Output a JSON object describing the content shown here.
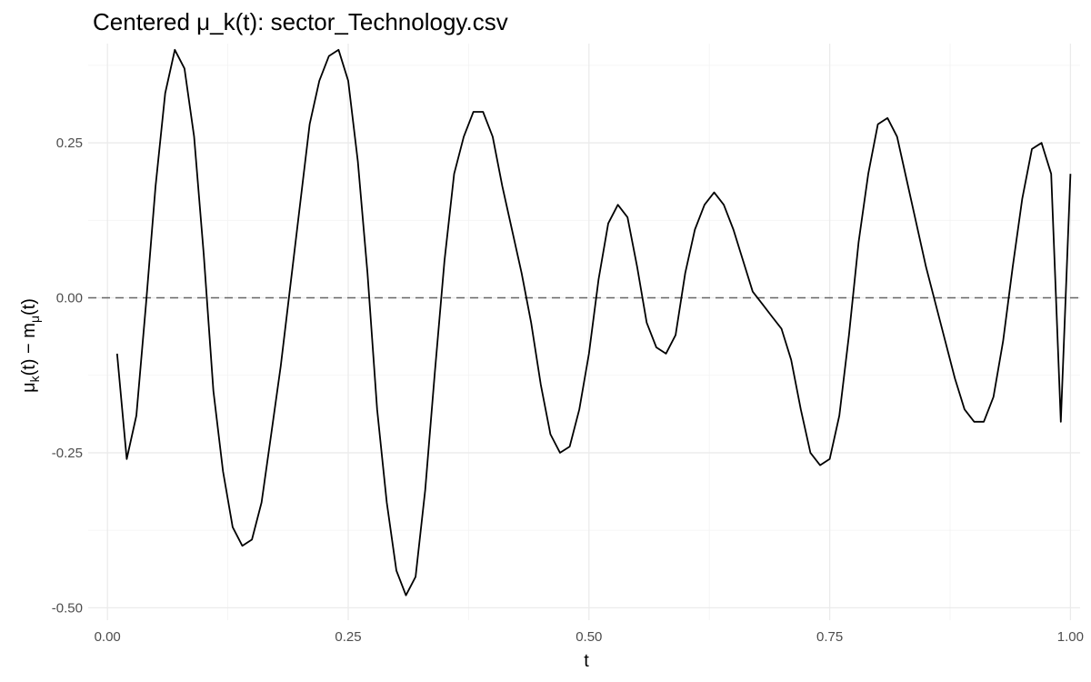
{
  "chart_data": {
    "type": "line",
    "title": "Centered μ_k(t): sector_Technology.csv",
    "xlabel": "t",
    "ylabel": {
      "mu": "μ",
      "k": "k",
      "rest": "(t) − m",
      "mu_sub": "μ",
      "end": "(t)"
    },
    "xlim": [
      -0.02,
      1.01
    ],
    "ylim": [
      -0.52,
      0.41
    ],
    "x_ticks": [
      0.0,
      0.25,
      0.5,
      0.75,
      1.0
    ],
    "x_tick_labels": [
      "0.00",
      "0.25",
      "0.50",
      "0.75",
      "1.00"
    ],
    "y_ticks": [
      -0.5,
      -0.25,
      0.0,
      0.25
    ],
    "y_tick_labels": [
      "-0.50",
      "-0.25",
      "0.00",
      "0.25"
    ],
    "reference_line": {
      "y": 0,
      "style": "dashed",
      "color": "#666666"
    },
    "grid": true,
    "line_color": "#000000",
    "series": [
      {
        "x": [
          0.01,
          0.02,
          0.03,
          0.04,
          0.05,
          0.06,
          0.07,
          0.08,
          0.09,
          0.1,
          0.11,
          0.12,
          0.13,
          0.14,
          0.15,
          0.16,
          0.17,
          0.18,
          0.19,
          0.2,
          0.21,
          0.22,
          0.23,
          0.24,
          0.25,
          0.26,
          0.27,
          0.28,
          0.29,
          0.3,
          0.31,
          0.32,
          0.33,
          0.34,
          0.35,
          0.36,
          0.37,
          0.38,
          0.39,
          0.4,
          0.41,
          0.42,
          0.43,
          0.44,
          0.45,
          0.46,
          0.47,
          0.48,
          0.49,
          0.5,
          0.51,
          0.52,
          0.53,
          0.54,
          0.55,
          0.56,
          0.57,
          0.58,
          0.59,
          0.6,
          0.61,
          0.62,
          0.63,
          0.64,
          0.65,
          0.66,
          0.67,
          0.68,
          0.69,
          0.7,
          0.71,
          0.72,
          0.73,
          0.74,
          0.75,
          0.76,
          0.77,
          0.78,
          0.79,
          0.8,
          0.81,
          0.82,
          0.83,
          0.84,
          0.85,
          0.86,
          0.87,
          0.88,
          0.89,
          0.9,
          0.91,
          0.92,
          0.93,
          0.94,
          0.95,
          0.96,
          0.97,
          0.98,
          0.99,
          1.0
        ],
        "y": [
          -0.09,
          -0.26,
          -0.19,
          -0.01,
          0.18,
          0.33,
          0.4,
          0.37,
          0.26,
          0.07,
          -0.15,
          -0.28,
          -0.37,
          -0.4,
          -0.39,
          -0.33,
          -0.22,
          -0.11,
          0.02,
          0.15,
          0.28,
          0.35,
          0.39,
          0.4,
          0.35,
          0.22,
          0.04,
          -0.18,
          -0.33,
          -0.44,
          -0.48,
          -0.45,
          -0.31,
          -0.12,
          0.06,
          0.2,
          0.26,
          0.3,
          0.3,
          0.26,
          0.18,
          0.11,
          0.04,
          -0.04,
          -0.14,
          -0.22,
          -0.25,
          -0.24,
          -0.18,
          -0.09,
          0.03,
          0.12,
          0.15,
          0.13,
          0.05,
          -0.04,
          -0.08,
          -0.09,
          -0.06,
          0.04,
          0.11,
          0.15,
          0.17,
          0.15,
          0.11,
          0.06,
          0.01,
          -0.01,
          -0.03,
          -0.05,
          -0.1,
          -0.18,
          -0.25,
          -0.27,
          -0.26,
          -0.19,
          -0.06,
          0.09,
          0.2,
          0.28,
          0.29,
          0.26,
          0.19,
          0.12,
          0.05,
          -0.01,
          -0.07,
          -0.13,
          -0.18,
          -0.2,
          -0.2,
          -0.16,
          -0.07,
          0.05,
          0.16,
          0.24,
          0.25,
          0.2,
          -0.2,
          0.2
        ]
      }
    ]
  }
}
